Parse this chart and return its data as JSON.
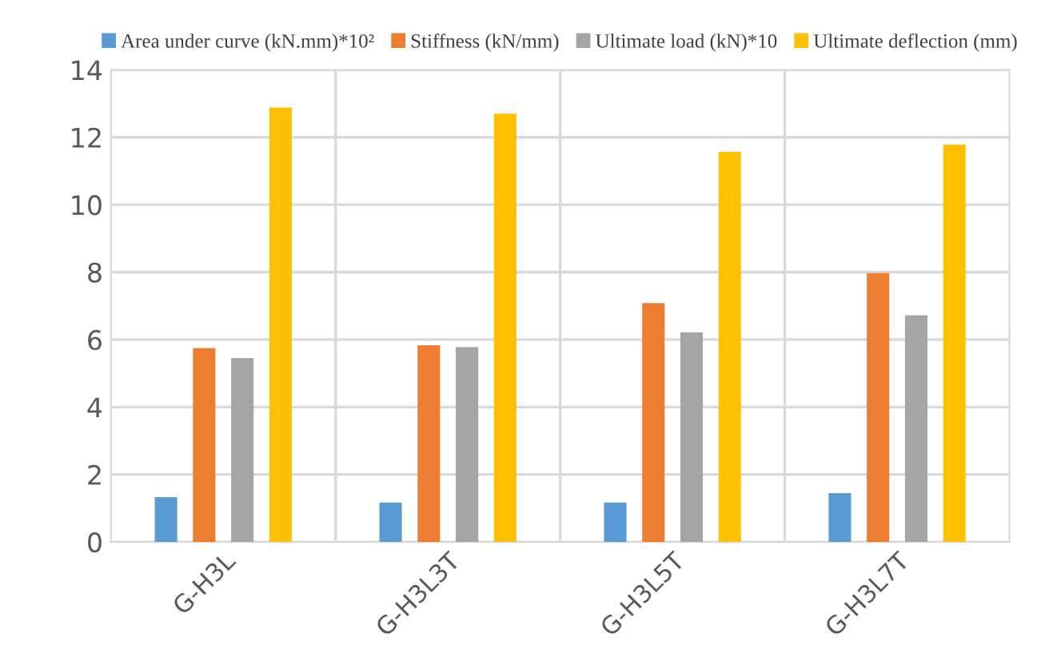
{
  "chart_data": {
    "type": "bar",
    "categories": [
      "G-H3L",
      "G-H3L3T",
      "G-H3L5T",
      "G-H3L7T"
    ],
    "series": [
      {
        "name": "Area under curve (kN.mm)*10²",
        "color": "#5b9bd5",
        "values": [
          1.33,
          1.17,
          1.17,
          1.45
        ]
      },
      {
        "name": "Stiffness (kN/mm)",
        "color": "#ed7d31",
        "values": [
          5.75,
          5.83,
          7.08,
          7.97
        ]
      },
      {
        "name": "Ultimate load (kN)*10",
        "color": "#a5a5a5",
        "values": [
          5.45,
          5.78,
          6.22,
          6.72
        ]
      },
      {
        "name": "Ultimate deflection (mm)",
        "color": "#ffc000",
        "values": [
          12.88,
          12.7,
          11.57,
          11.78
        ]
      }
    ],
    "ylim": [
      0,
      14
    ],
    "yticks": [
      0,
      2,
      4,
      6,
      8,
      10,
      12,
      14
    ],
    "grid": "y",
    "legend": "top"
  }
}
